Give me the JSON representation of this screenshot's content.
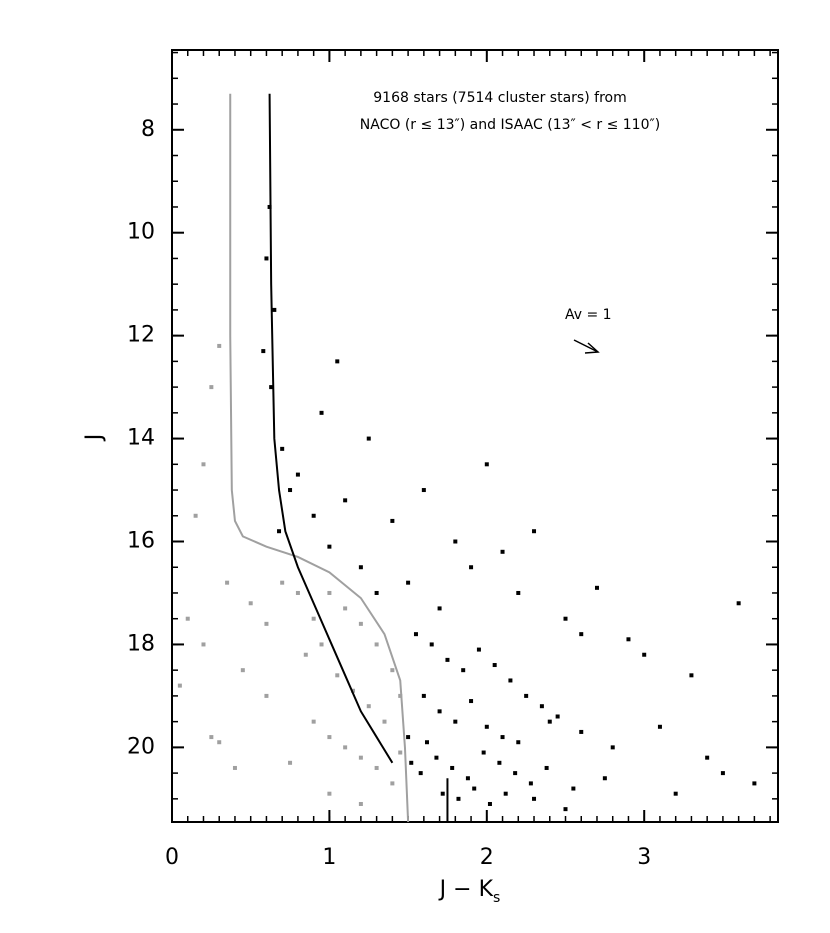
{
  "chart_data": {
    "type": "scatter",
    "annotation_lines": [
      "9168 stars (7514 cluster stars) from",
      "NACO (r ≤ 13″) and ISAAC (13″ < r ≤ 110″)"
    ],
    "reddening_label": "Av = 1",
    "x_label": "J − K",
    "x_label_subscript": "s",
    "y_label": "J",
    "xlim": [
      0,
      3.85
    ],
    "ylim": [
      6.45,
      21.45
    ],
    "y_inverted": true,
    "xticks": [
      0,
      1,
      2,
      3
    ],
    "yticks": [
      8,
      10,
      12,
      14,
      16,
      18,
      20
    ],
    "series": [
      {
        "type": "scatter",
        "color": "#a0a0a0",
        "x": [
          0.3,
          0.25,
          0.2,
          0.15,
          0.35,
          0.1,
          0.05,
          0.3,
          0.4,
          0.2,
          0.5,
          0.6,
          0.7,
          0.8,
          0.9,
          1.0,
          1.1,
          1.2,
          1.3,
          1.4,
          0.85,
          0.95,
          1.05,
          1.15,
          1.25,
          1.35,
          1.45,
          0.9,
          1.0,
          1.1,
          1.2,
          1.3,
          1.4,
          0.6,
          0.45,
          0.25,
          0.75,
          1.45,
          1.0,
          1.2
        ],
        "y": [
          12.2,
          13.0,
          14.5,
          15.5,
          16.8,
          17.5,
          18.8,
          19.9,
          20.4,
          18.0,
          17.2,
          17.6,
          16.8,
          17.0,
          17.5,
          17.0,
          17.3,
          17.6,
          18.0,
          18.5,
          18.2,
          18.0,
          18.6,
          18.9,
          19.2,
          19.5,
          20.1,
          19.5,
          19.8,
          20.0,
          20.2,
          20.4,
          20.7,
          19.0,
          18.5,
          19.8,
          20.3,
          19.0,
          20.9,
          21.1
        ]
      },
      {
        "type": "scatter",
        "color": "#000000",
        "x": [
          0.62,
          0.6,
          0.65,
          0.58,
          0.63,
          0.7,
          0.75,
          0.68,
          0.8,
          0.9,
          1.0,
          1.1,
          1.2,
          0.95,
          1.3,
          1.5,
          1.7,
          1.9,
          2.2,
          2.6,
          3.0,
          3.3,
          3.6,
          1.05,
          1.25,
          1.4,
          1.6,
          1.8,
          2.0,
          2.1,
          2.3,
          2.5,
          2.7,
          2.9,
          1.55,
          1.65,
          1.75,
          1.85,
          1.95,
          2.05,
          2.15,
          2.25,
          2.35,
          2.45,
          1.6,
          1.7,
          1.8,
          1.9,
          2.0,
          2.1,
          2.2,
          2.4,
          2.6,
          2.8,
          3.1,
          3.4,
          1.52,
          1.58,
          1.68,
          1.78,
          1.88,
          1.98,
          2.08,
          2.18,
          2.28,
          2.38,
          2.55,
          2.75,
          3.2,
          3.5,
          1.5,
          1.62,
          1.72,
          1.82,
          1.92,
          2.02,
          2.12,
          2.3,
          2.5,
          3.7
        ],
        "y": [
          9.5,
          10.5,
          11.5,
          12.3,
          13.0,
          14.2,
          15.0,
          15.8,
          14.7,
          15.5,
          16.1,
          15.2,
          16.5,
          13.5,
          17.0,
          16.8,
          17.3,
          16.5,
          17.0,
          17.8,
          18.2,
          18.6,
          17.2,
          12.5,
          14.0,
          15.6,
          15.0,
          16.0,
          14.5,
          16.2,
          15.8,
          17.5,
          16.9,
          17.9,
          17.8,
          18.0,
          18.3,
          18.5,
          18.1,
          18.4,
          18.7,
          19.0,
          19.2,
          19.4,
          19.0,
          19.3,
          19.5,
          19.1,
          19.6,
          19.8,
          19.9,
          19.5,
          19.7,
          20.0,
          19.6,
          20.2,
          20.3,
          20.5,
          20.2,
          20.4,
          20.6,
          20.1,
          20.3,
          20.5,
          20.7,
          20.4,
          20.8,
          20.6,
          20.9,
          20.5,
          19.8,
          19.9,
          20.9,
          21.0,
          20.8,
          21.1,
          20.9,
          21.0,
          21.2,
          20.7
        ]
      },
      {
        "type": "line",
        "color": "#a0a0a0",
        "x": [
          0.37,
          0.37,
          0.38,
          0.4,
          0.45,
          0.6,
          0.8,
          1.0,
          1.2,
          1.35,
          1.45,
          1.48,
          1.5
        ],
        "y": [
          7.3,
          12.0,
          15.0,
          15.6,
          15.9,
          16.1,
          16.3,
          16.6,
          17.1,
          17.8,
          18.7,
          20.0,
          21.45
        ]
      },
      {
        "type": "line",
        "color": "#000000",
        "x": [
          0.62,
          0.63,
          0.65,
          0.68,
          0.72,
          0.8,
          0.9,
          1.0,
          1.1,
          1.2,
          1.3,
          1.4
        ],
        "y": [
          7.3,
          11.0,
          14.0,
          15.0,
          15.8,
          16.5,
          17.2,
          17.9,
          18.6,
          19.3,
          19.8,
          20.3
        ]
      },
      {
        "type": "line",
        "color": "#000000",
        "x": [
          1.75,
          1.75
        ],
        "y": [
          20.6,
          21.45
        ]
      }
    ]
  }
}
